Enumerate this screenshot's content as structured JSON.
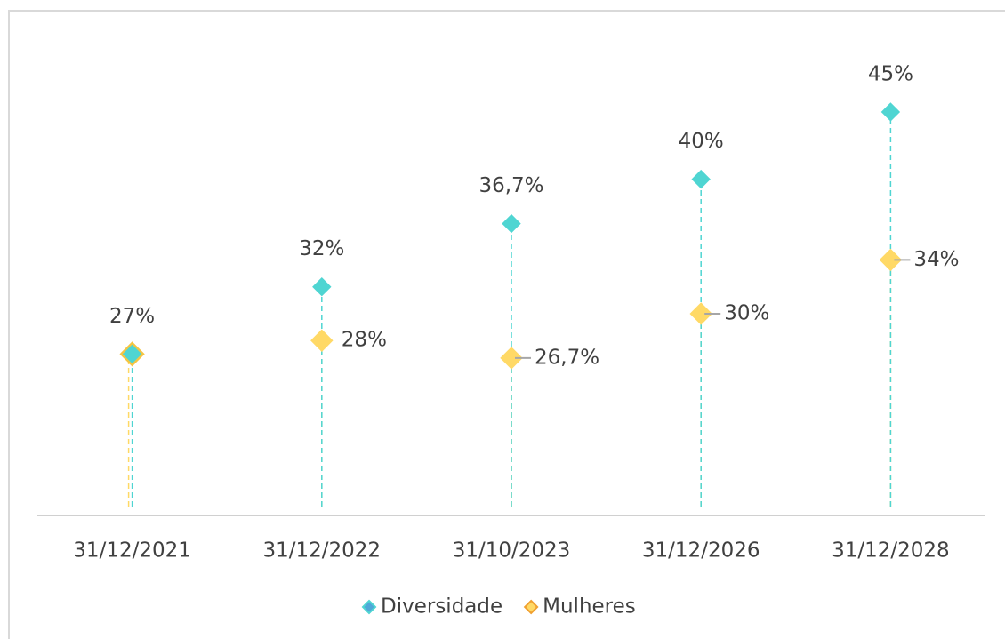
{
  "chart_data": {
    "type": "lollipop",
    "categories": [
      "31/12/2021",
      "31/12/2022",
      "31/10/2023",
      "31/12/2026",
      "31/12/2028"
    ],
    "series": [
      {
        "name": "Diversidade",
        "color": "#4fd5d2",
        "values": [
          27,
          32,
          36.7,
          40,
          45
        ],
        "value_labels": [
          "27%",
          "32%",
          "36,7%",
          "40%",
          "45%"
        ]
      },
      {
        "name": "Mulheres",
        "color": "#ffd966",
        "values": [
          27,
          28,
          26.7,
          30,
          34
        ],
        "value_labels": [
          null,
          "28%",
          "26,7%",
          "30%",
          "34%"
        ]
      }
    ],
    "ylim": [
      15,
      52
    ]
  }
}
